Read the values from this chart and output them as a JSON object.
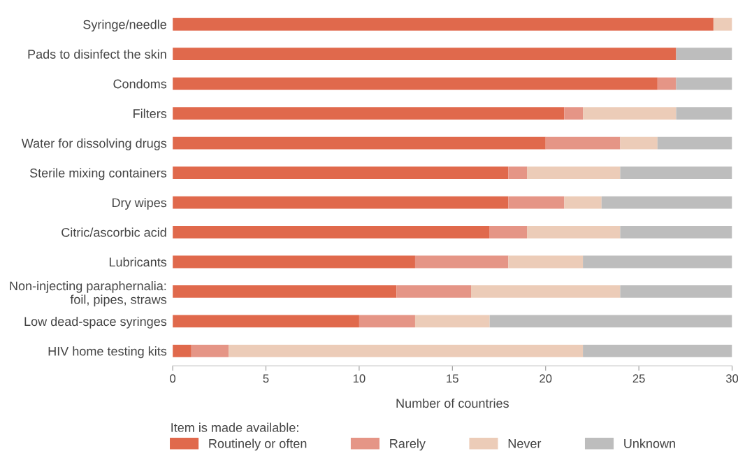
{
  "chart_data": {
    "type": "bar",
    "orientation": "horizontal",
    "stacked": true,
    "xlabel": "Number of countries",
    "legend_title": "Item is made available:",
    "legend": "bottom",
    "grid": false,
    "categories": [
      "Syringe/needle",
      "Pads to disinfect the skin",
      "Condoms",
      "Filters",
      "Water for dissolving drugs",
      "Sterile mixing containers",
      "Dry wipes",
      "Citric/ascorbic acid",
      "Lubricants",
      "Non-injecting paraphernalia:\nfoil, pipes, straws",
      "Low dead-space syringes",
      "HIV home testing kits"
    ],
    "series": [
      {
        "name": "Routinely or often",
        "color": "#e0694c",
        "values": [
          29,
          27,
          26,
          21,
          20,
          18,
          18,
          17,
          13,
          12,
          10,
          1
        ]
      },
      {
        "name": "Rarely",
        "color": "#e59586",
        "values": [
          0,
          0,
          1,
          1,
          4,
          1,
          3,
          2,
          5,
          4,
          3,
          2
        ]
      },
      {
        "name": "Never",
        "color": "#ecccb8",
        "values": [
          1,
          0,
          0,
          5,
          2,
          5,
          2,
          5,
          4,
          8,
          4,
          19
        ]
      },
      {
        "name": "Unknown",
        "color": "#bdbdbd",
        "values": [
          0,
          3,
          3,
          3,
          4,
          6,
          7,
          6,
          8,
          6,
          13,
          8
        ]
      }
    ],
    "xlim": [
      0,
      30
    ],
    "xticks": [
      0,
      5,
      10,
      15,
      20,
      25,
      30
    ]
  }
}
